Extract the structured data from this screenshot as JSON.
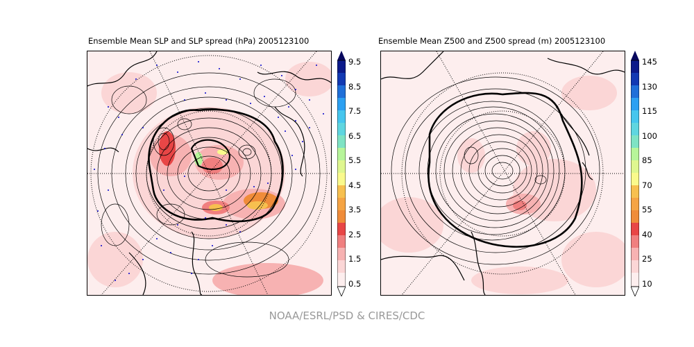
{
  "left_panel": {
    "title": "Ensemble Mean SLP and SLP spread (hPa) 2005123100",
    "colorbar": {
      "labels": [
        "9.5",
        "8.5",
        "7.5",
        "6.5",
        "5.5",
        "4.5",
        "3.5",
        "2.5",
        "1.5",
        "0.5"
      ]
    }
  },
  "right_panel": {
    "title": "Ensemble Mean Z500 and Z500 spread (m) 2005123100",
    "colorbar": {
      "labels": [
        "145",
        "130",
        "115",
        "100",
        "85",
        "70",
        "55",
        "40",
        "25",
        "10"
      ]
    }
  },
  "footer": "NOAA/ESRL/PSD & CIRES/CDC",
  "colors": {
    "scale": [
      "#fdeeee",
      "#fbd6d6",
      "#f7b2b2",
      "#f07f7f",
      "#e84646",
      "#f08c3a",
      "#f7c04f",
      "#fafa8c",
      "#b7f59a",
      "#7ee3c4",
      "#46c6ee",
      "#2ca0f2",
      "#1f6fd9",
      "#1239b3",
      "#0b1a8a",
      "#08085e"
    ]
  }
}
